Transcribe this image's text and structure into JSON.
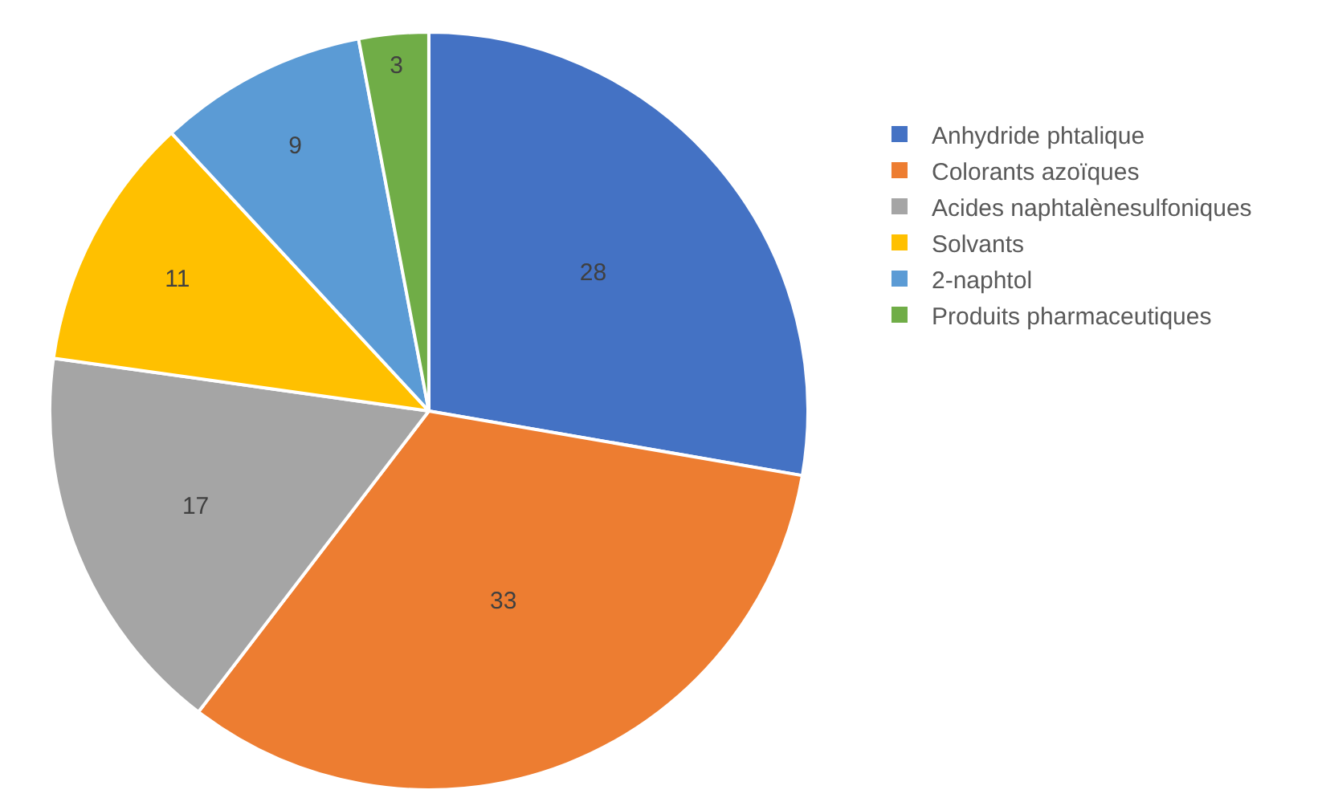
{
  "chart_data": {
    "type": "pie",
    "categories": [
      "Anhydride phtalique",
      "Colorants azoïques",
      "Acides naphtalènesulfoniques",
      "Solvants",
      "2-naphtol",
      "Produits pharmaceutiques"
    ],
    "values": [
      28,
      33,
      17,
      11,
      9,
      3
    ],
    "colors": [
      "#4472c4",
      "#ed7d31",
      "#a5a5a5",
      "#ffc000",
      "#5b9bd5",
      "#70ad47"
    ],
    "data_labels": true,
    "legend": "right"
  }
}
